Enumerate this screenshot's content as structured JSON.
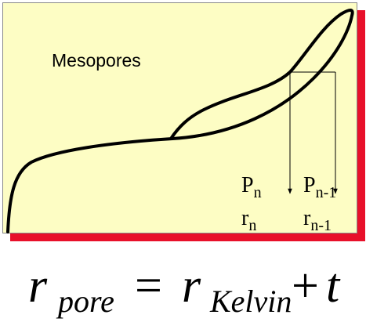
{
  "diagram": {
    "region_label": "Mesopores",
    "markers": [
      {
        "symbol": "P",
        "subscript": "n",
        "radius_symbol": "r",
        "radius_subscript": "n"
      },
      {
        "symbol": "P",
        "subscript": "n-1",
        "radius_symbol": "r",
        "radius_subscript": "n-1"
      }
    ]
  },
  "equation": {
    "lhs": "r",
    "lhs_subscript": "pore",
    "equals": "=",
    "term1": "r",
    "term1_subscript": "Kelvin",
    "plus": "+",
    "term2": "t"
  }
}
